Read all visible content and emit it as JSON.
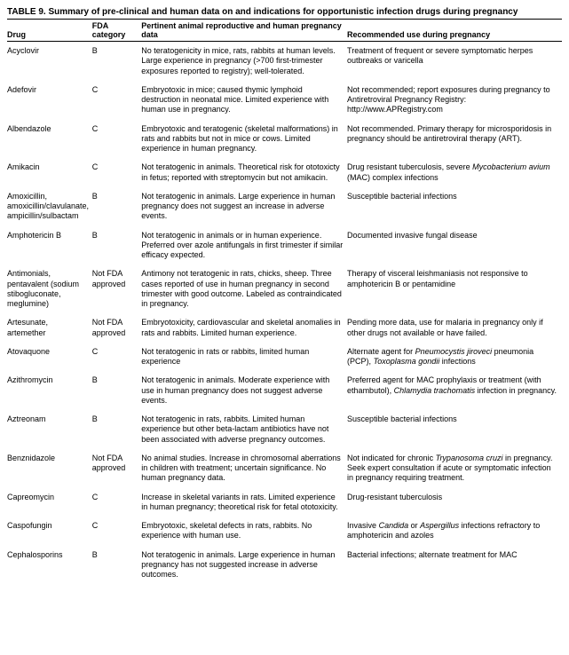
{
  "title": "TABLE 9. Summary of pre-clinical and human data on and indications for opportunistic infection drugs during pregnancy",
  "columns": {
    "drug": "Drug",
    "fda": "FDA category",
    "data": "Pertinent animal reproductive and human pregnancy data",
    "rec": "Recommended use during pregnancy"
  },
  "rows": [
    {
      "drug": "Acyclovir",
      "fda": "B",
      "data": "No teratogenicity in mice, rats, rabbits at human levels. Large experience in pregnancy (>700 first-trimester exposures reported to registry); well-tolerated.",
      "rec": "Treatment of frequent or severe symptomatic herpes outbreaks or varicella"
    },
    {
      "drug": "Adefovir",
      "fda": "C",
      "data": "Embryotoxic in mice; caused thymic lymphoid destruction in neonatal mice. Limited experience with human use in pregnancy.",
      "rec": "Not recommended; report exposures during pregnancy to Antiretroviral Pregnancy Registry: http://www.APRegistry.com"
    },
    {
      "drug": "Albendazole",
      "fda": "C",
      "data": "Embryotoxic and teratogenic (skeletal malformations) in rats and rabbits but not in mice or cows. Limited experience in human pregnancy.",
      "rec": "Not recommended. Primary therapy for microsporidosis in pregnancy should be antiretroviral therapy (ART)."
    },
    {
      "drug": "Amikacin",
      "fda": "C",
      "data": "Not teratogenic in animals. Theoretical risk for ototoxicty in fetus; reported with streptomycin but not amikacin.",
      "rec": "Drug resistant tuberculosis, severe <em>Mycobacterium avium</em> (MAC) complex infections"
    },
    {
      "drug": "Amoxicillin, amoxicillin/clavulanate, ampicillin/sulbactam",
      "fda": "B",
      "data": "Not teratogenic in animals. Large experience in human pregnancy does not suggest an increase in adverse events.",
      "rec": "Susceptible bacterial infections"
    },
    {
      "drug": "Amphotericin B",
      "fda": "B",
      "data": "Not teratogenic in animals or in human experience. Preferred over azole antifungals in first trimester if similar efficacy expected.",
      "rec": "Documented invasive fungal disease"
    },
    {
      "drug": "Antimonials, pentavalent (sodium stibogluconate, meglumine)",
      "fda": "Not FDA approved",
      "data": "Antimony not teratogenic in rats, chicks, sheep. Three cases reported of use in human pregnancy in second trimester with good outcome. Labeled as contraindicated in pregnancy.",
      "rec": "Therapy of visceral leishmaniasis not responsive to amphotericin B or pentamidine"
    },
    {
      "drug": "Artesunate, artemether",
      "fda": "Not FDA approved",
      "data": "Embryotoxicity, cardiovascular and skeletal anomalies in rats and rabbits. Limited human experience.",
      "rec": "Pending more data, use for malaria in pregnancy only if other drugs not available or have failed."
    },
    {
      "drug": "Atovaquone",
      "fda": "C",
      "data": "Not teratogenic in rats or rabbits, limited human experience",
      "rec": "Alternate agent for <em>Pneumocystis jiroveci</em> pneumonia (PCP), <em>Toxoplasma gondii</em> infections"
    },
    {
      "drug": "Azithromycin",
      "fda": "B",
      "data": "Not teratogenic in animals. Moderate experience with use in human pregnancy does not suggest adverse events.",
      "rec": "Preferred agent for MAC prophylaxis or treatment (with ethambutol), <em>Chlamydia trachomatis</em> infection in pregnancy."
    },
    {
      "drug": "Aztreonam",
      "fda": "B",
      "data": "Not teratogenic in rats, rabbits. Limited human experience but other beta-lactam antibiotics have not been associated with adverse pregnancy outcomes.",
      "rec": "Susceptible bacterial infections"
    },
    {
      "drug": "Benznidazole",
      "fda": "Not FDA approved",
      "data": "No animal studies. Increase in chromosomal aberrations in children with treatment; uncertain significance. No human pregnancy data.",
      "rec": "Not indicated for chronic <em>Trypanosoma cruzi</em> in pregnancy. Seek expert consultation if acute or symptomatic infection in pregnancy requiring treatment."
    },
    {
      "drug": "Capreomycin",
      "fda": "C",
      "data": "Increase in skeletal variants in rats. Limited experience in human pregnancy; theoretical risk for fetal ototoxicity.",
      "rec": "Drug-resistant tuberculosis"
    },
    {
      "drug": "Caspofungin",
      "fda": "C",
      "data": "Embryotoxic, skeletal defects in rats, rabbits. No experience with human use.",
      "rec": "Invasive <em>Candida</em> or <em>Aspergillus</em> infections refractory to amphotericin and azoles"
    },
    {
      "drug": "Cephalosporins",
      "fda": "B",
      "data": "Not teratogenic in animals. Large experience in human pregnancy has not suggested increase in adverse outcomes.",
      "rec": "Bacterial infections; alternate treatment for MAC"
    }
  ]
}
